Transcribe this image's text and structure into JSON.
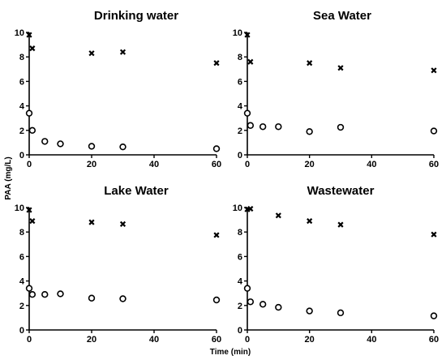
{
  "figure": {
    "ylabel": "PAA (mg/L)",
    "xlabel": "Time (min)"
  },
  "chart_data": [
    {
      "type": "scatter",
      "title": "Drinking water",
      "xlim": [
        0,
        60
      ],
      "ylim": [
        0,
        10
      ],
      "xticks": [
        "0",
        "20",
        "40",
        "60"
      ],
      "yticks": [
        "0",
        "2",
        "4",
        "6",
        "8",
        "10"
      ],
      "series": [
        {
          "marker": "x",
          "x": [
            0,
            1,
            20,
            30,
            60
          ],
          "y": [
            9.8,
            8.7,
            8.3,
            8.4,
            7.5
          ]
        },
        {
          "marker": "circle",
          "x": [
            0,
            1,
            5,
            10,
            20,
            30,
            60
          ],
          "y": [
            3.4,
            2.0,
            1.1,
            0.9,
            0.7,
            0.65,
            0.5
          ]
        }
      ]
    },
    {
      "type": "scatter",
      "title": "Sea Water",
      "xlim": [
        0,
        60
      ],
      "ylim": [
        0,
        10
      ],
      "xticks": [
        "0",
        "20",
        "40",
        "60"
      ],
      "yticks": [
        "0",
        "2",
        "4",
        "6",
        "8",
        "10"
      ],
      "series": [
        {
          "marker": "x",
          "x": [
            0,
            1,
            20,
            30,
            60
          ],
          "y": [
            9.8,
            7.6,
            7.5,
            7.1,
            6.9
          ]
        },
        {
          "marker": "circle",
          "x": [
            0,
            1,
            5,
            10,
            20,
            30,
            60
          ],
          "y": [
            3.4,
            2.4,
            2.3,
            2.3,
            1.9,
            2.25,
            1.95
          ]
        }
      ]
    },
    {
      "type": "scatter",
      "title": "Lake Water",
      "xlim": [
        0,
        60
      ],
      "ylim": [
        0,
        10
      ],
      "xticks": [
        "0",
        "20",
        "40",
        "60"
      ],
      "yticks": [
        "0",
        "2",
        "4",
        "6",
        "8",
        "10"
      ],
      "series": [
        {
          "marker": "x",
          "x": [
            0,
            1,
            20,
            30,
            60
          ],
          "y": [
            9.8,
            8.9,
            8.8,
            8.65,
            7.75
          ]
        },
        {
          "marker": "circle",
          "x": [
            0,
            1,
            5,
            10,
            20,
            30,
            60
          ],
          "y": [
            3.4,
            2.9,
            2.9,
            2.95,
            2.6,
            2.55,
            2.45
          ]
        }
      ]
    },
    {
      "type": "scatter",
      "title": "Wastewater",
      "xlim": [
        0,
        60
      ],
      "ylim": [
        0,
        10
      ],
      "xticks": [
        "0",
        "20",
        "40",
        "60"
      ],
      "yticks": [
        "0",
        "2",
        "4",
        "6",
        "8",
        "10"
      ],
      "series": [
        {
          "marker": "x",
          "x": [
            0,
            1,
            10,
            20,
            30,
            60
          ],
          "y": [
            9.85,
            9.9,
            9.35,
            8.9,
            8.6,
            7.8
          ]
        },
        {
          "marker": "circle",
          "x": [
            0,
            1,
            5,
            10,
            20,
            30,
            60
          ],
          "y": [
            3.4,
            2.3,
            2.1,
            1.85,
            1.55,
            1.4,
            1.15
          ]
        }
      ]
    }
  ]
}
